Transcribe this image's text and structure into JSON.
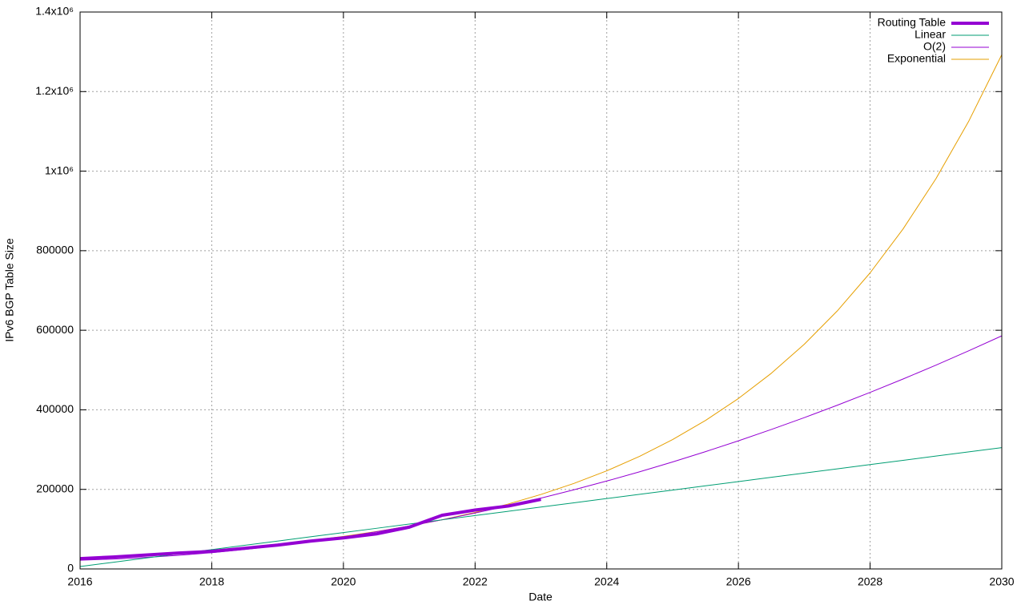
{
  "chart_data": {
    "type": "line",
    "xlabel": "Date",
    "ylabel": "IPv6 BGP Table Size",
    "x": [
      2016,
      2016.5,
      2017,
      2017.5,
      2018,
      2018.5,
      2019,
      2019.5,
      2020,
      2020.5,
      2021,
      2021.5,
      2022,
      2022.5,
      2023,
      2023.5,
      2024,
      2024.5,
      2025,
      2025.5,
      2026,
      2026.5,
      2027,
      2027.5,
      2028,
      2028.5,
      2029,
      2029.5,
      2030
    ],
    "series": [
      {
        "name": "Routing Table",
        "color": "#9400d3",
        "width": 4,
        "values": [
          26000,
          30000,
          35000,
          40000,
          44000,
          52000,
          60000,
          70000,
          78000,
          88000,
          105000,
          135000,
          148000,
          158000,
          175000,
          null,
          null,
          null,
          null,
          null,
          null,
          null,
          null,
          null,
          null,
          null,
          null,
          null,
          null
        ]
      },
      {
        "name": "Linear",
        "color": "#009e73",
        "width": 1,
        "values": [
          6000,
          16700,
          27400,
          38000,
          48700,
          59400,
          70100,
          80800,
          91400,
          102100,
          112800,
          123500,
          134200,
          144800,
          155500,
          166200,
          176900,
          187600,
          198200,
          208900,
          219600,
          230300,
          241000,
          251600,
          262300,
          273000,
          283700,
          294400,
          305000
        ]
      },
      {
        "name": "O(2)",
        "color": "#9400d3",
        "width": 1,
        "values": [
          22000,
          24800,
          28900,
          34300,
          40900,
          48900,
          58100,
          68600,
          80400,
          93500,
          107900,
          123500,
          140400,
          158600,
          178100,
          198900,
          221000,
          244300,
          269000,
          294900,
          322100,
          350600,
          380400,
          411400,
          443800,
          477400,
          512300,
          548500,
          585900
        ]
      },
      {
        "name": "Exponential",
        "color": "#e69f00",
        "width": 1,
        "values": [
          27100,
          31110,
          35720,
          41000,
          47070,
          54040,
          62040,
          71220,
          81760,
          93870,
          107760,
          123710,
          142020,
          163040,
          187180,
          214880,
          246690,
          283200,
          325120,
          373250,
          428490,
          491920,
          564740,
          648320,
          744300,
          854460,
          980950,
          1126130,
          1292800
        ]
      }
    ],
    "xlim": [
      2016,
      2030
    ],
    "xticks": [
      2016,
      2018,
      2020,
      2022,
      2024,
      2026,
      2028,
      2030
    ],
    "ylim": [
      0,
      1400000
    ],
    "yticks": [
      0,
      200000,
      400000,
      600000,
      800000,
      {
        "value": 1000000,
        "label": "1x10⁶"
      },
      {
        "value": 1200000,
        "label": "1.2x10⁶"
      },
      {
        "value": 1400000,
        "label": "1.4x10⁶"
      }
    ],
    "grid": true,
    "legend": "top-right"
  }
}
